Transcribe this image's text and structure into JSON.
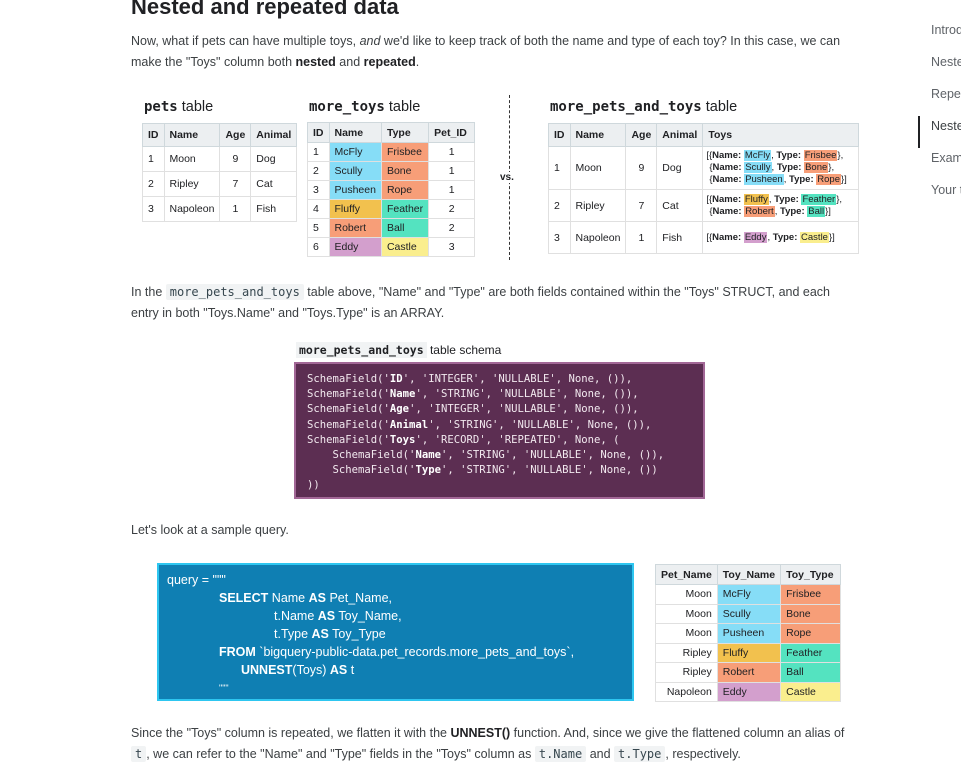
{
  "page": {
    "title": "Nested and repeated data",
    "intro": {
      "p1": "Now, what if pets can have multiple toys, ",
      "p1_em": "and",
      "p2": " we'd like to keep track of both the name and type of each toy? In this case, we can make the \"Toys\" column both ",
      "nested": "nested",
      "and": " and ",
      "repeated": "repeated",
      "end": "."
    },
    "explain": {
      "p1": "In the ",
      "code": "more_pets_and_toys",
      "p2": " table above, \"Name\" and \"Type\" are both fields contained within the \"Toys\" STRUCT, and each entry in both \"Toys.Name\" and \"Toys.Type\" is an ARRAY."
    },
    "lets_look": "Let's look at a sample query.",
    "since": {
      "p1": "Since the \"Toys\" column is repeated, we flatten it with the ",
      "fn": "UNNEST()",
      "p2": " function. And, since we give the flattened column an alias of ",
      "code1": "t",
      "p3": ", we can refer to the \"Name\" and \"Type\" fields in the \"Toys\" column as ",
      "code2": "t.Name",
      "p4": " and ",
      "code3": "t.Type",
      "p5": ", respectively."
    }
  },
  "toc": [
    "Introduction",
    "Nested data",
    "Repeated data",
    "Nested and repeated data",
    "Example",
    "Your turn"
  ],
  "pets": {
    "caption_code": "pets",
    "caption_text": " table",
    "headers": [
      "ID",
      "Name",
      "Age",
      "Animal"
    ],
    "rows": [
      [
        "1",
        "Moon",
        "9",
        "Dog"
      ],
      [
        "2",
        "Ripley",
        "7",
        "Cat"
      ],
      [
        "3",
        "Napoleon",
        "1",
        "Fish"
      ]
    ]
  },
  "more_toys": {
    "caption_code": "more_toys",
    "caption_text": " table",
    "headers": [
      "ID",
      "Name",
      "Type",
      "Pet_ID"
    ],
    "rows": [
      [
        "1",
        "McFly",
        "Frisbee",
        "1"
      ],
      [
        "2",
        "Scully",
        "Bone",
        "1"
      ],
      [
        "3",
        "Pusheen",
        "Rope",
        "1"
      ],
      [
        "4",
        "Fluffy",
        "Feather",
        "2"
      ],
      [
        "5",
        "Robert",
        "Ball",
        "2"
      ],
      [
        "6",
        "Eddy",
        "Castle",
        "3"
      ]
    ]
  },
  "vs_label": "vs.",
  "more_pets_and_toys": {
    "caption_code": "more_pets_and_toys",
    "caption_text": " table",
    "headers": [
      "ID",
      "Name",
      "Age",
      "Animal",
      "Toys"
    ],
    "rows": [
      {
        "id": "1",
        "name": "Moon",
        "age": "9",
        "animal": "Dog",
        "toys": [
          {
            "open": "[{",
            "name": "McFly",
            "type": "Frisbee",
            "close": "},"
          },
          {
            "open": "{",
            "name": "Scully",
            "type": "Bone",
            "close": "},"
          },
          {
            "open": "{",
            "name": "Pusheen",
            "type": "Rope",
            "close": "}]"
          }
        ]
      },
      {
        "id": "2",
        "name": "Ripley",
        "age": "7",
        "animal": "Cat",
        "toys": [
          {
            "open": "[{",
            "name": "Fluffy",
            "type": "Feather",
            "close": "},"
          },
          {
            "open": "{",
            "name": "Robert",
            "type": "Ball",
            "close": "}]"
          }
        ]
      },
      {
        "id": "3",
        "name": "Napoleon",
        "age": "1",
        "animal": "Fish",
        "toys": [
          {
            "open": "[{",
            "name": "Eddy",
            "type": "Castle",
            "close": "}]"
          }
        ]
      }
    ],
    "name_key": "Name:",
    "type_key": "Type:"
  },
  "schema": {
    "caption_code": "more_pets_and_toys",
    "caption_text": " table schema",
    "lines": [
      [
        "SchemaField('",
        "ID",
        "', 'INTEGER', 'NULLABLE', None, ()),"
      ],
      [
        "SchemaField('",
        "Name",
        "', 'STRING', 'NULLABLE', None, ()),"
      ],
      [
        "SchemaField('",
        "Age",
        "', 'INTEGER', 'NULLABLE', None, ()),"
      ],
      [
        "SchemaField('",
        "Animal",
        "', 'STRING', 'NULLABLE', None, ()),"
      ],
      [
        "SchemaField('",
        "Toys",
        "', 'RECORD', 'REPEATED', None, ("
      ],
      [
        "    SchemaField('",
        "Name",
        "', 'STRING', 'NULLABLE', None, ()),"
      ],
      [
        "    SchemaField('",
        "Type",
        "', 'STRING', 'NULLABLE', None, ())"
      ],
      [
        "))",
        "",
        ""
      ]
    ]
  },
  "query": {
    "line1": "query = \"\"\"",
    "select_kw": "SELECT",
    "select_rest_a": " Name ",
    "as_kw": "AS",
    "select_rest_b": " Pet_Name,",
    "l2a": "t.Name ",
    "l2b": " Toy_Name,",
    "l3a": "t.Type ",
    "l3b": " Toy_Type",
    "from_kw": "FROM",
    "from_rest": " `bigquery-public-data.pet_records.more_pets_and_toys`,",
    "unnest_kw": "UNNEST",
    "unnest_rest": "(Toys) ",
    "unnest_alias": " t",
    "end": "\"\"\""
  },
  "result": {
    "headers": [
      "Pet_Name",
      "Toy_Name",
      "Toy_Type"
    ],
    "rows": [
      [
        "Moon",
        "McFly",
        "Frisbee"
      ],
      [
        "Moon",
        "Scully",
        "Bone"
      ],
      [
        "Moon",
        "Pusheen",
        "Rope"
      ],
      [
        "Ripley",
        "Fluffy",
        "Feather"
      ],
      [
        "Ripley",
        "Robert",
        "Ball"
      ],
      [
        "Napoleon",
        "Eddy",
        "Castle"
      ]
    ]
  },
  "colors": {
    "blue": "#86ddf7",
    "orange": "#f79e78",
    "pink": "#d39fcd",
    "yellow": "#f4d03f",
    "teal": "#54e3c0",
    "mustard": "#f2c14e",
    "light_yellow": "#faee8e",
    "schema_bg": "#5c2e52",
    "query_bg": "#0f7fb3"
  }
}
